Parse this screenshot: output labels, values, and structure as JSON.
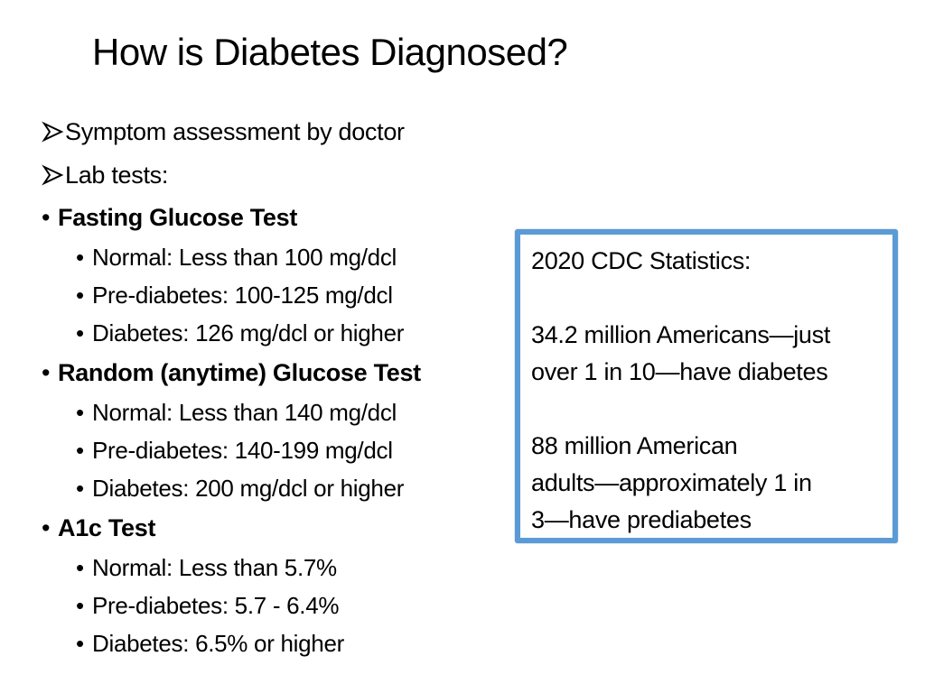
{
  "title": "How is Diabetes Diagnosed?",
  "bullets": {
    "symptom": "Symptom assessment by doctor",
    "lab": "Lab tests:",
    "fasting": {
      "heading": "Fasting Glucose Test",
      "normal": "Normal: Less than 100 mg/dcl",
      "prediabetes": "Pre-diabetes: 100-125 mg/dcl",
      "diabetes": "Diabetes: 126 mg/dcl or higher"
    },
    "random": {
      "heading": "Random (anytime) Glucose Test",
      "normal": "Normal: Less than 140 mg/dcl",
      "prediabetes": "Pre-diabetes: 140-199 mg/dcl",
      "diabetes": "Diabetes: 200 mg/dcl or higher"
    },
    "a1c": {
      "heading": "A1c Test",
      "normal": "Normal: Less than 5.7%",
      "prediabetes": "Pre-diabetes: 5.7 - 6.4%",
      "diabetes": "Diabetes: 6.5% or higher"
    }
  },
  "bullet_glyph": "•",
  "arrow_bullet_icon": "arrow-bullet-icon",
  "stats": {
    "heading": "2020 CDC Statistics:",
    "stat1_line1": "34.2 million Americans—just",
    "stat1_line2": "over 1 in 10—have diabetes",
    "stat2_line1": "88 million American",
    "stat2_line2": "adults—approximately 1 in",
    "stat2_line3": "3—have prediabetes"
  },
  "colors": {
    "box_border": "#5b9bd5",
    "text": "#000000"
  }
}
